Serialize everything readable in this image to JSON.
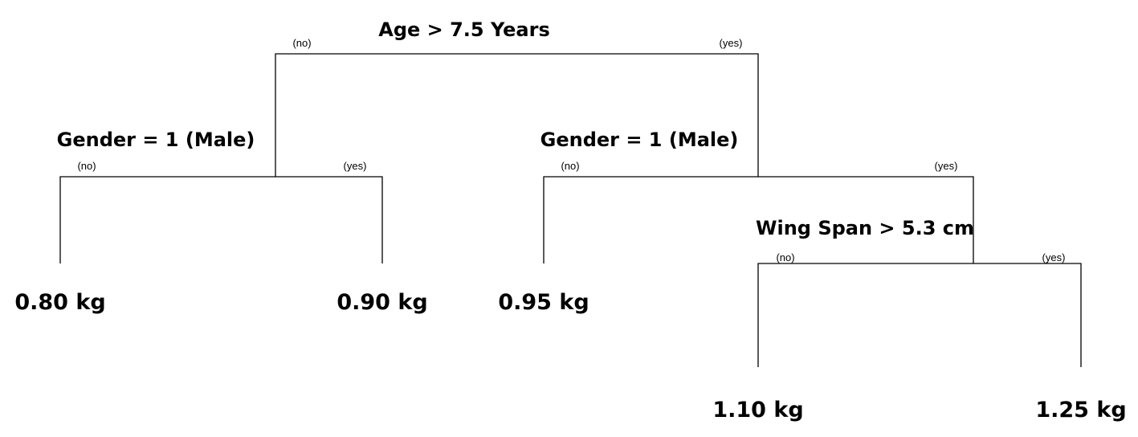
{
  "tree": {
    "root": {
      "label": "Age > 7.5 Years",
      "no_label": "(no)",
      "yes_label": "(yes)",
      "left": {
        "label": "Gender = 1 (Male)",
        "no_label": "(no)",
        "yes_label": "(yes)",
        "no_leaf": "0.80 kg",
        "yes_leaf": "0.90 kg"
      },
      "right": {
        "label": "Gender = 1 (Male)",
        "no_label": "(no)",
        "yes_label": "(yes)",
        "no_leaf": "0.95 kg",
        "yes_node": {
          "label": "Wing Span > 5.3 cm",
          "no_label": "(no)",
          "yes_label": "(yes)",
          "no_leaf": "1.10 kg",
          "yes_leaf": "1.25 kg"
        }
      }
    }
  }
}
